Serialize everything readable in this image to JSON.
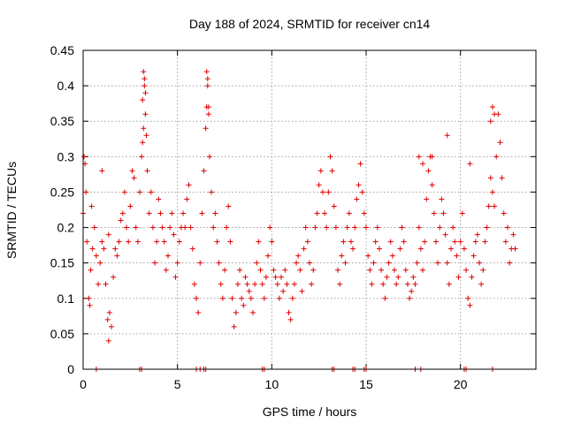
{
  "chart_data": {
    "type": "scatter",
    "title": "Day 188 of 2024, SRMTID for receiver cn14",
    "xlabel": "GPS time / hours",
    "ylabel": "SRMTID / TECUs",
    "xlim": [
      0,
      24
    ],
    "ylim": [
      0,
      0.45
    ],
    "xticks": [
      0,
      5,
      10,
      15,
      20
    ],
    "xtick_labels": [
      "0",
      "5",
      "10",
      "15",
      "20"
    ],
    "yticks": [
      0,
      0.05,
      0.1,
      0.15,
      0.2,
      0.25,
      0.3,
      0.35,
      0.4,
      0.45
    ],
    "ytick_labels": [
      "0",
      "0.05",
      "0.1",
      "0.15",
      "0.2",
      "0.25",
      "0.3",
      "0.35",
      "0.4",
      "0.45"
    ],
    "grid": true,
    "marker": "+",
    "marker_color": "#e00000",
    "series": [
      {
        "name": "SRMTID",
        "x": [
          0.0,
          0.05,
          0.1,
          0.15,
          0.2,
          0.3,
          0.35,
          0.4,
          0.5,
          0.6,
          0.7,
          0.8,
          0.9,
          1.0,
          1.1,
          1.2,
          1.3,
          1.35,
          1.4,
          1.5,
          1.6,
          1.7,
          1.8,
          1.9,
          2.0,
          2.1,
          2.2,
          2.3,
          2.4,
          2.5,
          2.6,
          2.7,
          2.8,
          2.9,
          3.0,
          3.1,
          3.15,
          3.2,
          3.25,
          3.3,
          3.35,
          3.4,
          3.5,
          3.6,
          3.7,
          3.8,
          3.9,
          4.0,
          4.1,
          4.2,
          4.3,
          4.4,
          4.5,
          4.6,
          4.7,
          4.8,
          4.9,
          5.0,
          5.1,
          5.2,
          5.3,
          5.4,
          5.5,
          5.6,
          5.7,
          5.8,
          5.9,
          6.0,
          6.1,
          6.2,
          6.3,
          6.4,
          6.5,
          6.55,
          6.6,
          6.65,
          6.7,
          6.8,
          6.9,
          7.0,
          7.1,
          7.2,
          7.3,
          7.4,
          7.5,
          7.6,
          7.7,
          7.8,
          7.9,
          8.0,
          8.1,
          8.2,
          8.3,
          8.4,
          8.5,
          8.6,
          8.7,
          8.8,
          8.9,
          9.0,
          9.1,
          9.2,
          9.3,
          9.4,
          9.5,
          9.6,
          9.7,
          9.8,
          9.9,
          10.0,
          10.1,
          10.2,
          10.3,
          10.4,
          10.5,
          10.6,
          10.7,
          10.8,
          10.9,
          11.0,
          11.1,
          11.2,
          11.3,
          11.4,
          11.5,
          11.6,
          11.7,
          11.8,
          11.9,
          12.0,
          12.1,
          12.2,
          12.3,
          12.4,
          12.5,
          12.6,
          12.7,
          12.8,
          12.9,
          13.0,
          13.1,
          13.2,
          13.3,
          13.4,
          13.5,
          13.6,
          13.7,
          13.8,
          13.9,
          14.0,
          14.1,
          14.2,
          14.3,
          14.4,
          14.5,
          14.6,
          14.7,
          14.8,
          14.9,
          15.0,
          15.1,
          15.2,
          15.3,
          15.4,
          15.5,
          15.6,
          15.7,
          15.8,
          15.9,
          16.0,
          16.1,
          16.2,
          16.3,
          16.4,
          16.5,
          16.6,
          16.7,
          16.8,
          16.9,
          17.0,
          17.1,
          17.2,
          17.3,
          17.4,
          17.5,
          17.6,
          17.7,
          17.8,
          17.9,
          18.0,
          18.1,
          18.2,
          18.3,
          18.4,
          18.5,
          18.6,
          18.7,
          18.8,
          18.9,
          19.0,
          19.1,
          19.2,
          19.3,
          19.4,
          19.5,
          19.6,
          19.7,
          19.8,
          19.9,
          20.0,
          20.1,
          20.2,
          20.3,
          20.4,
          20.5,
          20.6,
          20.7,
          20.8,
          20.9,
          21.0,
          21.1,
          21.2,
          21.3,
          21.4,
          21.5,
          21.6,
          21.7,
          21.8,
          21.9,
          22.0,
          22.1,
          22.2,
          22.3,
          22.4,
          22.5,
          22.6,
          22.7,
          22.8,
          22.9,
          0.45,
          1.0,
          1.35,
          3.15,
          3.2,
          3.25,
          3.3,
          6.55,
          6.6,
          6.65,
          17.8,
          18.0,
          18.5,
          19.3,
          20.5,
          21.6,
          21.7,
          21.8,
          0.7,
          3.0,
          3.1,
          6.0,
          6.2,
          6.4,
          6.5,
          9.5,
          9.6,
          13.2,
          13.3,
          14.3,
          14.4,
          14.9,
          15.0,
          17.6,
          17.9,
          20.2,
          20.3,
          21.7
        ],
        "y": [
          0.22,
          0.3,
          0.29,
          0.25,
          0.18,
          0.1,
          0.09,
          0.14,
          0.17,
          0.2,
          0.16,
          0.12,
          0.15,
          0.18,
          0.17,
          0.12,
          0.07,
          0.04,
          0.08,
          0.06,
          0.13,
          0.17,
          0.16,
          0.18,
          0.21,
          0.22,
          0.25,
          0.2,
          0.18,
          0.23,
          0.28,
          0.27,
          0.2,
          0.18,
          0.25,
          0.3,
          0.38,
          0.42,
          0.41,
          0.36,
          0.33,
          0.28,
          0.22,
          0.25,
          0.2,
          0.15,
          0.18,
          0.24,
          0.22,
          0.2,
          0.18,
          0.14,
          0.16,
          0.2,
          0.22,
          0.19,
          0.13,
          0.15,
          0.18,
          0.2,
          0.22,
          0.2,
          0.24,
          0.26,
          0.2,
          0.17,
          0.12,
          0.1,
          0.08,
          0.15,
          0.22,
          0.28,
          0.34,
          0.37,
          0.41,
          0.36,
          0.3,
          0.25,
          0.2,
          0.22,
          0.18,
          0.15,
          0.12,
          0.1,
          0.14,
          0.2,
          0.23,
          0.18,
          0.1,
          0.06,
          0.08,
          0.12,
          0.14,
          0.1,
          0.09,
          0.13,
          0.12,
          0.11,
          0.1,
          0.08,
          0.12,
          0.15,
          0.18,
          0.14,
          0.12,
          0.1,
          0.13,
          0.16,
          0.2,
          0.18,
          0.14,
          0.13,
          0.12,
          0.1,
          0.13,
          0.11,
          0.14,
          0.12,
          0.08,
          0.07,
          0.1,
          0.12,
          0.15,
          0.16,
          0.14,
          0.11,
          0.17,
          0.2,
          0.18,
          0.15,
          0.12,
          0.14,
          0.2,
          0.22,
          0.26,
          0.28,
          0.25,
          0.22,
          0.2,
          0.25,
          0.3,
          0.28,
          0.23,
          0.2,
          0.14,
          0.12,
          0.16,
          0.18,
          0.15,
          0.2,
          0.22,
          0.18,
          0.17,
          0.2,
          0.24,
          0.26,
          0.29,
          0.25,
          0.22,
          0.2,
          0.16,
          0.14,
          0.12,
          0.15,
          0.18,
          0.2,
          0.17,
          0.14,
          0.12,
          0.1,
          0.13,
          0.15,
          0.18,
          0.16,
          0.14,
          0.12,
          0.13,
          0.17,
          0.2,
          0.18,
          0.14,
          0.12,
          0.1,
          0.11,
          0.13,
          0.12,
          0.15,
          0.2,
          0.17,
          0.14,
          0.18,
          0.24,
          0.28,
          0.3,
          0.26,
          0.22,
          0.18,
          0.15,
          0.2,
          0.24,
          0.22,
          0.19,
          0.15,
          0.12,
          0.17,
          0.2,
          0.18,
          0.16,
          0.13,
          0.18,
          0.22,
          0.17,
          0.14,
          0.1,
          0.09,
          0.13,
          0.16,
          0.18,
          0.19,
          0.15,
          0.12,
          0.14,
          0.18,
          0.2,
          0.23,
          0.27,
          0.25,
          0.23,
          0.3,
          0.36,
          0.32,
          0.27,
          0.22,
          0.18,
          0.2,
          0.15,
          0.17,
          0.19,
          0.17,
          0.23,
          0.28,
          0.19,
          0.32,
          0.34,
          0.4,
          0.39,
          0.42,
          0.4,
          0.37,
          0.3,
          0.29,
          0.3,
          0.33,
          0.29,
          0.35,
          0.37,
          0.36,
          0.0,
          0.0,
          0.0,
          0.0,
          0.0,
          0.0,
          0.0,
          0.0,
          0.0,
          0.0,
          0.0,
          0.0,
          0.0,
          0.0,
          0.0,
          0.0,
          0.0,
          0.0,
          0.0,
          0.0
        ]
      }
    ]
  }
}
